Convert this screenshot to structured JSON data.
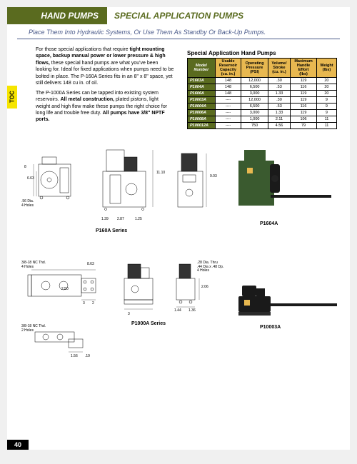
{
  "header": {
    "left": "HAND PUMPS",
    "right": "SPECIAL APPLICATION PUMPS"
  },
  "subheader": "Place Them Into Hydraulic Systems, Or Use Them As Standby Or Back-Up Pumps.",
  "toc": "TOC",
  "paragraphs": [
    "For those special applications that require tight mounting space, backup manual power or lower pressure & high flows, these special hand pumps are what you've been looking for. Ideal for fixed applications when pumps need to be bolted in place. The P-160A Series fits in an 8\" x 8\" space, yet still delivers 148 cu in. of oil.",
    "The P-1000A Series can be tapped into existing system reservoirs. All metal construction, plated pistons, light weight and high flow make these pumps the right choice for long life and trouble free duty. All pumps have 3/8\" NPTF ports."
  ],
  "table": {
    "title": "Special Application Hand Pumps",
    "columns": [
      "Model Number",
      "Usable Reservoir Capacity (cu. in.)",
      "Operating Pressure (PSI)",
      "Volume/ Stroke (cu. in.)",
      "Maximum Handle Effort (lbs)",
      "Weight (lbs)"
    ],
    "rows": [
      [
        "P1603A",
        "148",
        "12,000",
        ".30",
        "119",
        "20"
      ],
      [
        "P1604A",
        "148",
        "6,500",
        ".53",
        "116",
        "20"
      ],
      [
        "P1606A",
        "148",
        "3,000",
        "1.33",
        "119",
        "20"
      ],
      [
        "P10003A",
        "----",
        "12,000",
        ".30",
        "119",
        "9"
      ],
      [
        "P10004A",
        "----",
        "6,500",
        ".53",
        "116",
        "9"
      ],
      [
        "P10006A",
        "----",
        "3,000",
        "1.33",
        "119",
        "9"
      ],
      [
        "P10008A",
        "----",
        "1,000",
        "2.11",
        "106",
        "11"
      ],
      [
        "P100012A",
        "----",
        "750",
        "4.56",
        "79",
        "11"
      ]
    ]
  },
  "diagrams": {
    "p160_label": "P160A Series",
    "p1000_label": "P1000A Series",
    "p1604_label": "P1604A",
    "p10003_label": "P10003A",
    "dims": {
      "d1": "8",
      "d2": "6.63",
      "d3": ".56 Dia.",
      "d4": "4 Holes",
      "d5": "11.10",
      "d6": "1.39",
      "d7": "2.87",
      "d8": "1.25",
      "d9": "9.03",
      "d10": "3/8-18 NC Thd.",
      "d11": "4 Holes",
      "d12": "8.63",
      "d13": "2.50",
      "d14": ".28 Dia. Thru",
      "d15": ".44 Dia x .48 Dp.",
      "d16": "4 Holes",
      "d17": "2.06",
      "d18": "1.44",
      "d19": "1.36",
      "d20": "3/8-18 NC Thd.",
      "d21": "2 Holes",
      "d22": "1.56",
      "d23": ".19",
      "d24": "3",
      "d25": "2",
      "d26": "3",
      "d27": "40"
    }
  },
  "colors": {
    "olive": "#5a6b1f",
    "gold": "#e8b850",
    "yellow": "#f6e500",
    "blue": "#4a5a8a",
    "pump_green": "#3a5a2f",
    "pump_black": "#1a1a1a"
  },
  "page_number": "40"
}
